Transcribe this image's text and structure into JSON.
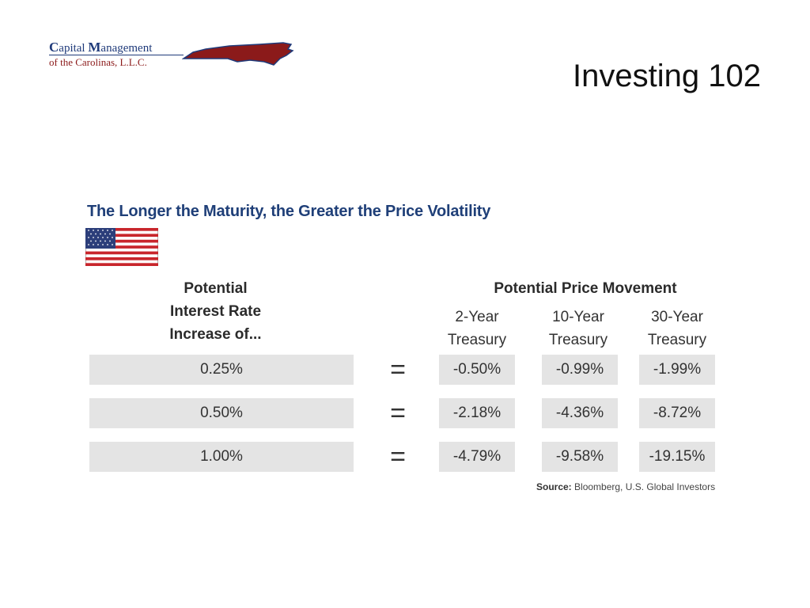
{
  "logo": {
    "line1_cap1": "C",
    "line1_rest1": "apital ",
    "line1_cap2": "M",
    "line1_rest2": "anagement",
    "line2": "of the Carolinas, L.L.C.",
    "map_icon": "north-carolina-map",
    "colors": {
      "blue": "#1f3a7a",
      "red": "#8b1a1a"
    }
  },
  "slide": {
    "title": "Investing 102"
  },
  "figure": {
    "title": "The Longer the Maturity, the Greater the Price Volatility",
    "flag_icon": "us-flag",
    "header_rate": [
      "Potential",
      "Interest Rate",
      "Increase of..."
    ],
    "header_movement": "Potential Price Movement",
    "columns": [
      [
        "2-Year",
        "Treasury"
      ],
      [
        "10-Year",
        "Treasury"
      ],
      [
        "30-Year",
        "Treasury"
      ]
    ],
    "equals": "=",
    "rows": [
      {
        "rate": "0.25%",
        "values": [
          "-0.50%",
          "-0.99%",
          "-1.99%"
        ]
      },
      {
        "rate": "0.50%",
        "values": [
          "-2.18%",
          "-4.36%",
          "-8.72%"
        ]
      },
      {
        "rate": "1.00%",
        "values": [
          "-4.79%",
          "-9.58%",
          "-19.15%"
        ]
      }
    ],
    "source_label": "Source:",
    "source_text": " Bloomberg, U.S. Global Investors",
    "colors": {
      "title": "#1f3f78",
      "cell_bg": "#e4e4e4"
    }
  }
}
